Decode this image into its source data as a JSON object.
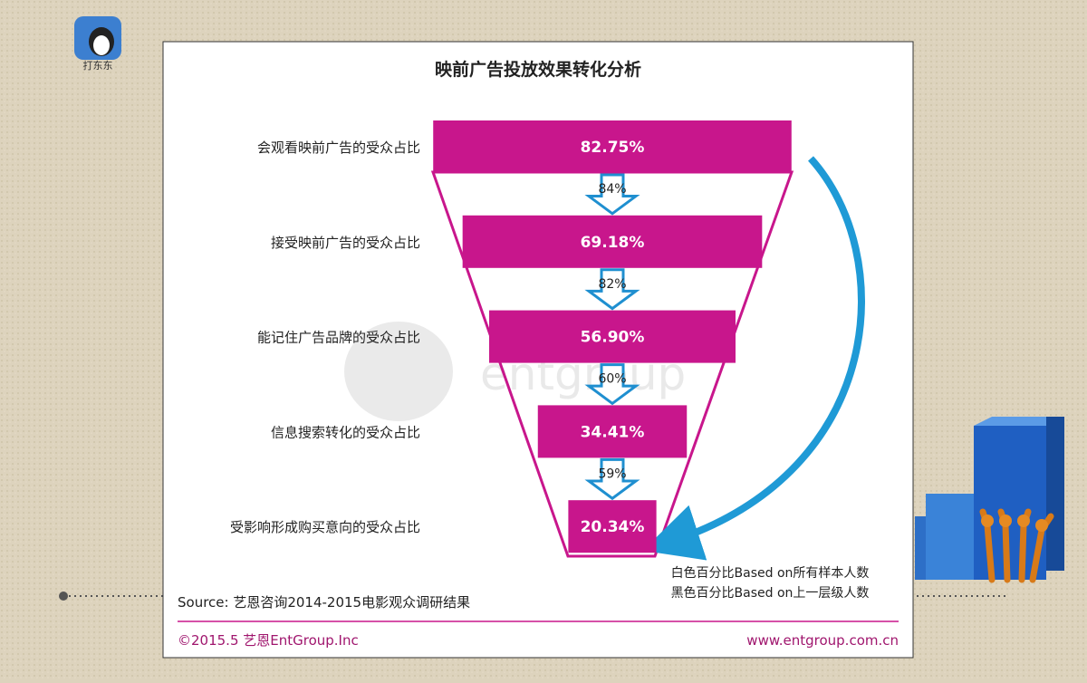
{
  "app_label": "打东东",
  "chart_data": {
    "type": "funnel",
    "title": "映前广告投放效果转化分析",
    "categories": [
      "会观看映前广告的受众占比",
      "接受映前广告的受众占比",
      "能记住广告品牌的受众占比",
      "信息搜索转化的受众占比",
      "受影响形成购买意向的受众占比"
    ],
    "values": [
      82.75,
      69.18,
      56.9,
      34.41,
      20.34
    ],
    "value_labels": [
      "82.75%",
      "69.18%",
      "56.90%",
      "34.41%",
      "20.34%"
    ],
    "color": "#c8168c",
    "conversion": {
      "values": [
        84,
        82,
        60,
        59
      ],
      "value_labels": [
        "84%",
        "82%",
        "60%",
        "59%"
      ],
      "color": "#1f8fd0"
    },
    "notes": [
      "白色百分比Based on所有样本人数",
      "黑色百分比Based on上一层级人数"
    ],
    "source": "Source: 艺恩咨询2014-2015电影观众调研结果"
  },
  "footer": {
    "left": "©2015.5 艺恩EntGroup.Inc",
    "right": "www.entgroup.com.cn"
  }
}
